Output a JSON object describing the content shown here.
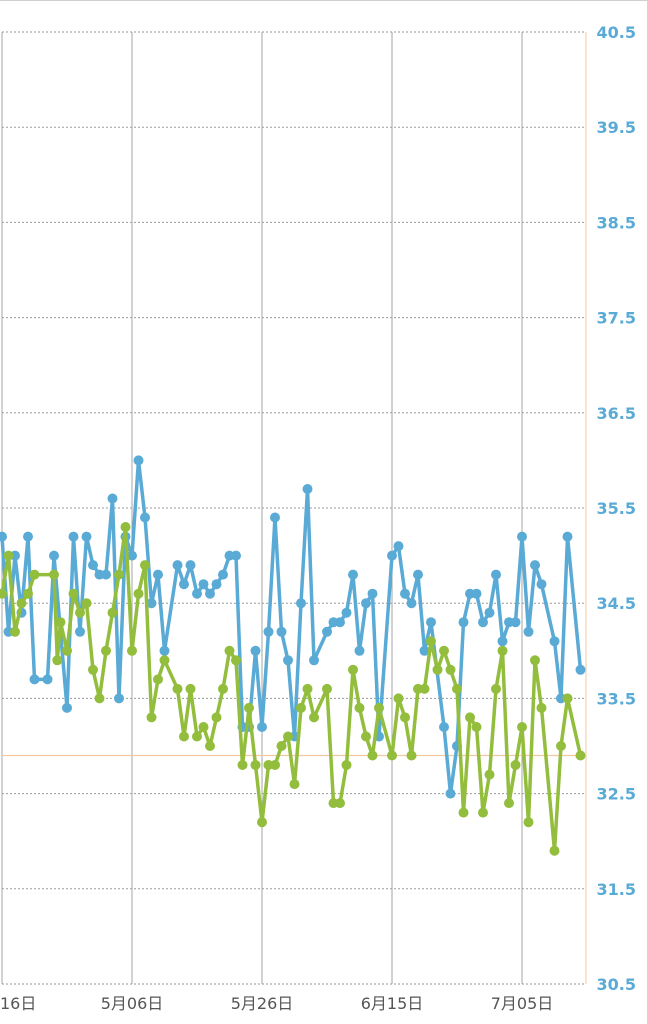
{
  "chart_data": {
    "type": "line",
    "title": "",
    "xlabel": "",
    "ylabel": "",
    "ylim": [
      30.5,
      40.5
    ],
    "y_ticks": [
      "40.5",
      "39.5",
      "38.5",
      "37.5",
      "36.5",
      "35.5",
      "34.5",
      "33.5",
      "32.5",
      "31.5",
      "30.5"
    ],
    "x_ticks": [
      {
        "label": "16日",
        "day": 0
      },
      {
        "label": "5月06日",
        "day": 20
      },
      {
        "label": "5月26日",
        "day": 40
      },
      {
        "label": "6月15日",
        "day": 60
      },
      {
        "label": "7月05日",
        "day": 80
      }
    ],
    "x_range_days": [
      0,
      89
    ],
    "reference_line": 32.9,
    "grid": true,
    "legend": "none",
    "colors": {
      "series_1": "#5aaad6",
      "series_2": "#93bd3c",
      "axis_text": "#5aaad6",
      "reference": "#f2c9a0"
    },
    "series": [
      {
        "color": "#5aaad6",
        "points": [
          [
            0,
            35.2
          ],
          [
            1,
            34.2
          ],
          [
            2,
            35.0
          ],
          [
            3,
            34.4
          ],
          [
            4,
            35.2
          ],
          [
            5,
            33.7
          ],
          [
            7,
            33.7
          ],
          [
            8,
            35.0
          ],
          [
            10,
            33.4
          ],
          [
            11,
            35.2
          ],
          [
            12,
            34.2
          ],
          [
            13,
            35.2
          ],
          [
            14,
            34.9
          ],
          [
            15,
            34.8
          ],
          [
            16,
            34.8
          ],
          [
            17,
            35.6
          ],
          [
            18,
            33.5
          ],
          [
            19,
            35.2
          ],
          [
            20,
            35.0
          ],
          [
            21,
            36.0
          ],
          [
            22,
            35.4
          ],
          [
            23,
            34.5
          ],
          [
            24,
            34.8
          ],
          [
            25,
            34.0
          ],
          [
            27,
            34.9
          ],
          [
            28,
            34.7
          ],
          [
            29,
            34.9
          ],
          [
            30,
            34.6
          ],
          [
            31,
            34.7
          ],
          [
            32,
            34.6
          ],
          [
            33,
            34.7
          ],
          [
            34,
            34.8
          ],
          [
            35,
            35.0
          ],
          [
            36,
            35.0
          ],
          [
            37,
            33.2
          ],
          [
            38,
            33.2
          ],
          [
            39,
            34.0
          ],
          [
            40,
            33.2
          ],
          [
            41,
            34.2
          ],
          [
            42,
            35.4
          ],
          [
            43,
            34.2
          ],
          [
            44,
            33.9
          ],
          [
            45,
            33.1
          ],
          [
            46,
            34.5
          ],
          [
            47,
            35.7
          ],
          [
            48,
            33.9
          ],
          [
            50,
            34.2
          ],
          [
            51,
            34.3
          ],
          [
            52,
            34.3
          ],
          [
            53,
            34.4
          ],
          [
            54,
            34.8
          ],
          [
            55,
            34.0
          ],
          [
            56,
            34.5
          ],
          [
            57,
            34.6
          ],
          [
            58,
            33.1
          ],
          [
            60,
            35.0
          ],
          [
            61,
            35.1
          ],
          [
            62,
            34.6
          ],
          [
            63,
            34.5
          ],
          [
            64,
            34.8
          ],
          [
            65,
            34.0
          ],
          [
            66,
            34.3
          ],
          [
            68,
            33.2
          ],
          [
            69,
            32.5
          ],
          [
            70,
            33.0
          ],
          [
            71,
            34.3
          ],
          [
            72,
            34.6
          ],
          [
            73,
            34.6
          ],
          [
            74,
            34.3
          ],
          [
            75,
            34.4
          ],
          [
            76,
            34.8
          ],
          [
            77,
            34.1
          ],
          [
            78,
            34.3
          ],
          [
            79,
            34.3
          ],
          [
            80,
            35.2
          ],
          [
            81,
            34.2
          ],
          [
            82,
            34.9
          ],
          [
            83,
            34.7
          ],
          [
            85,
            34.1
          ],
          [
            86,
            33.5
          ],
          [
            87,
            35.2
          ],
          [
            89,
            33.8
          ]
        ]
      },
      {
        "color": "#93bd3c",
        "points": [
          [
            0,
            34.6
          ],
          [
            1,
            35.0
          ],
          [
            2,
            34.2
          ],
          [
            3,
            34.5
          ],
          [
            4,
            34.6
          ],
          [
            5,
            34.8
          ],
          [
            8,
            34.8
          ],
          [
            8.5,
            33.9
          ],
          [
            9,
            34.3
          ],
          [
            10,
            34.0
          ],
          [
            11,
            34.6
          ],
          [
            12,
            34.4
          ],
          [
            13,
            34.5
          ],
          [
            14,
            33.8
          ],
          [
            15,
            33.5
          ],
          [
            16,
            34.0
          ],
          [
            17,
            34.4
          ],
          [
            18,
            34.8
          ],
          [
            19,
            35.3
          ],
          [
            20,
            34.0
          ],
          [
            21,
            34.6
          ],
          [
            22,
            34.9
          ],
          [
            23,
            33.3
          ],
          [
            24,
            33.7
          ],
          [
            25,
            33.9
          ],
          [
            27,
            33.6
          ],
          [
            28,
            33.1
          ],
          [
            29,
            33.6
          ],
          [
            30,
            33.1
          ],
          [
            31,
            33.2
          ],
          [
            32,
            33.0
          ],
          [
            33,
            33.3
          ],
          [
            34,
            33.6
          ],
          [
            35,
            34.0
          ],
          [
            36,
            33.9
          ],
          [
            37,
            32.8
          ],
          [
            38,
            33.4
          ],
          [
            39,
            32.8
          ],
          [
            40,
            32.2
          ],
          [
            41,
            32.8
          ],
          [
            42,
            32.8
          ],
          [
            43,
            33.0
          ],
          [
            44,
            33.1
          ],
          [
            45,
            32.6
          ],
          [
            46,
            33.4
          ],
          [
            47,
            33.6
          ],
          [
            48,
            33.3
          ],
          [
            50,
            33.6
          ],
          [
            51,
            32.4
          ],
          [
            52,
            32.4
          ],
          [
            53,
            32.8
          ],
          [
            54,
            33.8
          ],
          [
            55,
            33.4
          ],
          [
            56,
            33.1
          ],
          [
            57,
            32.9
          ],
          [
            58,
            33.4
          ],
          [
            60,
            32.9
          ],
          [
            61,
            33.5
          ],
          [
            62,
            33.3
          ],
          [
            63,
            32.9
          ],
          [
            64,
            33.6
          ],
          [
            65,
            33.6
          ],
          [
            66,
            34.1
          ],
          [
            67,
            33.8
          ],
          [
            68,
            34.0
          ],
          [
            69,
            33.8
          ],
          [
            70,
            33.6
          ],
          [
            71,
            32.3
          ],
          [
            72,
            33.3
          ],
          [
            73,
            33.2
          ],
          [
            74,
            32.3
          ],
          [
            75,
            32.7
          ],
          [
            76,
            33.6
          ],
          [
            77,
            34.0
          ],
          [
            78,
            32.4
          ],
          [
            79,
            32.8
          ],
          [
            80,
            33.2
          ],
          [
            81,
            32.2
          ],
          [
            82,
            33.9
          ],
          [
            83,
            33.4
          ],
          [
            85,
            31.9
          ],
          [
            86,
            33.0
          ],
          [
            87,
            33.5
          ],
          [
            89,
            32.9
          ]
        ]
      }
    ]
  }
}
